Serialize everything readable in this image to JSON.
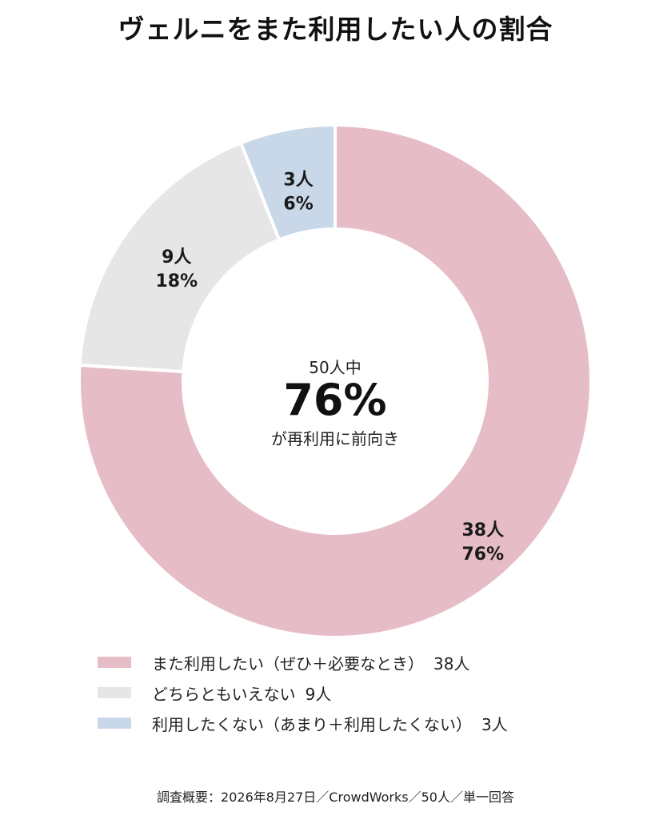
{
  "chart_data": {
    "type": "pie",
    "title": "ヴェルニをまた利用したい人の割合",
    "categories": [
      "また利用したい（ぜひ＋必要なとき）",
      "どちらともいえない",
      "利用したくない（あまり＋利用したくない）"
    ],
    "values": [
      38,
      9,
      3
    ],
    "percentages": [
      76,
      18,
      6
    ],
    "slice_labels": [
      {
        "count": "38人",
        "percent": "76%"
      },
      {
        "count": "9人",
        "percent": "18%"
      },
      {
        "count": "3人",
        "percent": "6%"
      }
    ],
    "legend_counts": [
      "38人",
      "9人",
      "3人"
    ],
    "colors": [
      "#e6bcc6",
      "#e6e6e6",
      "#c9d8e8"
    ],
    "donut": true,
    "center": {
      "top": "50人中",
      "big": "76%",
      "bottom": "が再利用に前向き"
    },
    "legend_position": "bottom"
  },
  "footer": "調査概要：2026年8月27日／CrowdWorks／50人／単一回答"
}
